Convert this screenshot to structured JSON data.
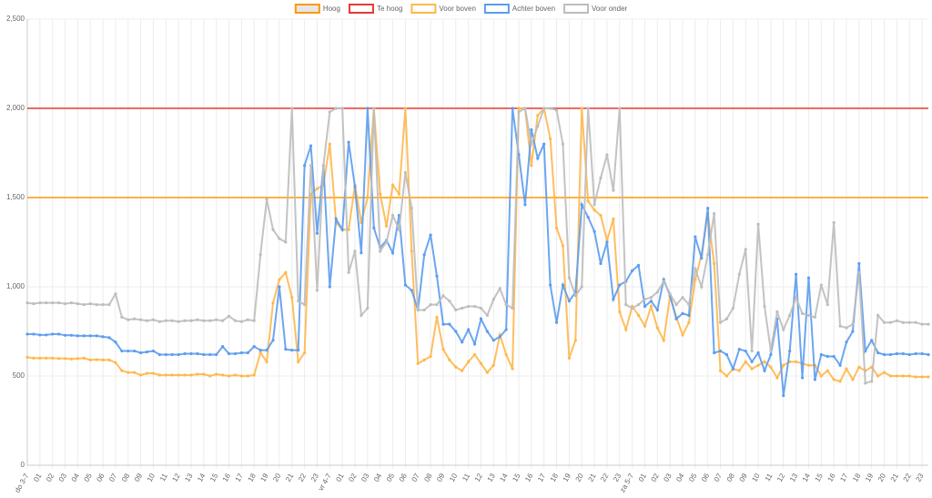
{
  "chart_data": {
    "type": "line",
    "ylim": [
      0,
      2500
    ],
    "yticks": [
      0,
      500,
      {
        "value": 1000,
        "label": "1,000"
      },
      {
        "value": 1500,
        "label": "1,500"
      },
      {
        "value": 2000,
        "label": "2,000"
      },
      {
        "value": 2500,
        "label": "2,500"
      }
    ],
    "grid": true,
    "legend": "top",
    "thresholds": [
      {
        "name": "Hoog",
        "color": "#ff9800",
        "value": 1500
      },
      {
        "name": "Te hoog",
        "color": "#e53935",
        "value": 2000
      }
    ],
    "categories": [
      "do 3-7",
      null,
      "01",
      null,
      "02",
      null,
      "03",
      null,
      "04",
      null,
      "05",
      null,
      "06",
      null,
      "07",
      null,
      "08",
      null,
      "09",
      null,
      "10",
      null,
      "11",
      null,
      "12",
      null,
      "13",
      null,
      "14",
      null,
      "15",
      null,
      "16",
      null,
      "17",
      null,
      "18",
      null,
      "19",
      null,
      "20",
      null,
      "21",
      null,
      "22",
      null,
      "23",
      null,
      "vr 4-7",
      null,
      "01",
      null,
      "02",
      null,
      "03",
      null,
      "04",
      null,
      "05",
      null,
      "06",
      null,
      "07",
      null,
      "08",
      null,
      "09",
      null,
      "10",
      null,
      "11",
      null,
      "12",
      null,
      "13",
      null,
      "14",
      null,
      "15",
      null,
      "16",
      null,
      "17",
      null,
      "18",
      null,
      "19",
      null,
      "20",
      null,
      "21",
      null,
      "22",
      null,
      "23",
      null,
      "za 5-7",
      null,
      "01",
      null,
      "02",
      null,
      "03",
      null,
      "04",
      null,
      "05",
      null,
      "06",
      null,
      "07",
      null,
      "08",
      null,
      "09",
      null,
      "10",
      null,
      "11",
      null,
      "12",
      null,
      "13",
      null,
      "14",
      null,
      "15",
      null,
      "16",
      null,
      "17",
      null,
      "18",
      null,
      "19",
      null,
      "20",
      null,
      "21",
      null,
      "22",
      null,
      "23",
      null
    ],
    "series": [
      {
        "name": "Voor boven",
        "color": "#ffb74d",
        "values": [
          605,
          600,
          600,
          600,
          600,
          598,
          598,
          595,
          598,
          600,
          590,
          592,
          590,
          590,
          575,
          530,
          520,
          520,
          505,
          515,
          515,
          505,
          505,
          505,
          505,
          505,
          505,
          510,
          510,
          500,
          510,
          505,
          500,
          505,
          500,
          500,
          505,
          630,
          580,
          910,
          1040,
          1080,
          940,
          580,
          630,
          1520,
          1550,
          1570,
          1800,
          1360,
          1320,
          1320,
          1570,
          1360,
          1500,
          2000,
          1520,
          1340,
          1570,
          1520,
          2000,
          1200,
          570,
          590,
          610,
          830,
          650,
          590,
          550,
          530,
          580,
          620,
          570,
          520,
          560,
          730,
          620,
          540,
          2000,
          2000,
          1680,
          1960,
          2000,
          1830,
          1330,
          1230,
          600,
          700,
          2000,
          1480,
          1430,
          1400,
          1260,
          1380,
          860,
          760,
          890,
          840,
          780,
          890,
          770,
          700,
          950,
          830,
          730,
          800,
          1040,
          1180,
          1410,
          1130,
          530,
          500,
          540,
          530,
          580,
          540,
          560,
          580,
          550,
          490,
          560,
          580,
          580,
          570,
          560,
          560,
          500,
          530,
          480,
          470,
          540,
          480,
          550,
          530,
          550,
          500,
          520,
          500,
          500,
          500,
          500,
          495,
          495,
          495
        ]
      },
      {
        "name": "Achter boven",
        "color": "#5b9cf0",
        "values": [
          735,
          735,
          730,
          730,
          735,
          735,
          728,
          728,
          725,
          725,
          725,
          725,
          720,
          715,
          690,
          640,
          640,
          640,
          630,
          635,
          640,
          620,
          620,
          620,
          620,
          625,
          625,
          625,
          620,
          620,
          620,
          665,
          625,
          625,
          630,
          630,
          665,
          645,
          645,
          700,
          1000,
          650,
          645,
          645,
          1680,
          1790,
          1300,
          1680,
          1000,
          1380,
          1320,
          1810,
          1560,
          1190,
          2000,
          1330,
          1220,
          1260,
          1190,
          1400,
          1010,
          980,
          870,
          1180,
          1290,
          1060,
          790,
          790,
          750,
          690,
          760,
          680,
          820,
          750,
          700,
          720,
          760,
          2000,
          1740,
          1460,
          1880,
          1720,
          1800,
          1010,
          800,
          1010,
          920,
          970,
          1460,
          1390,
          1310,
          1130,
          1250,
          930,
          1010,
          1030,
          1090,
          1120,
          890,
          920,
          870,
          1040,
          950,
          820,
          850,
          840,
          1280,
          1160,
          1440,
          630,
          640,
          620,
          540,
          650,
          640,
          580,
          630,
          530,
          620,
          820,
          390,
          640,
          1070,
          490,
          1050,
          480,
          620,
          610,
          610,
          560,
          690,
          750,
          1130,
          640,
          700,
          630,
          620,
          620,
          625,
          625,
          620,
          625,
          625,
          620
        ]
      },
      {
        "name": "Voor onder",
        "color": "#bdbdbd",
        "values": [
          910,
          905,
          910,
          910,
          910,
          910,
          905,
          910,
          905,
          900,
          905,
          900,
          900,
          900,
          960,
          830,
          815,
          820,
          815,
          810,
          815,
          805,
          810,
          810,
          805,
          810,
          810,
          815,
          810,
          810,
          815,
          810,
          835,
          810,
          805,
          815,
          810,
          1180,
          1490,
          1320,
          1270,
          1250,
          2000,
          920,
          900,
          1680,
          980,
          1680,
          1980,
          2000,
          2000,
          1080,
          1200,
          840,
          880,
          2000,
          1200,
          1250,
          1400,
          1320,
          1640,
          1440,
          870,
          870,
          900,
          900,
          950,
          920,
          870,
          880,
          890,
          890,
          880,
          840,
          930,
          990,
          900,
          880,
          1980,
          2000,
          1800,
          1900,
          2000,
          2000,
          1990,
          1800,
          1050,
          950,
          1000,
          2000,
          1460,
          1610,
          1740,
          1540,
          2000,
          900,
          880,
          900,
          930,
          940,
          970,
          1030,
          960,
          900,
          940,
          900,
          1100,
          1000,
          1180,
          1410,
          800,
          820,
          880,
          1070,
          1210,
          640,
          1350,
          890,
          640,
          860,
          760,
          840,
          940,
          850,
          840,
          830,
          1010,
          900,
          1360,
          780,
          770,
          790,
          1080,
          460,
          470,
          840,
          800,
          800,
          810,
          800,
          800,
          800,
          790,
          790
        ]
      }
    ]
  }
}
